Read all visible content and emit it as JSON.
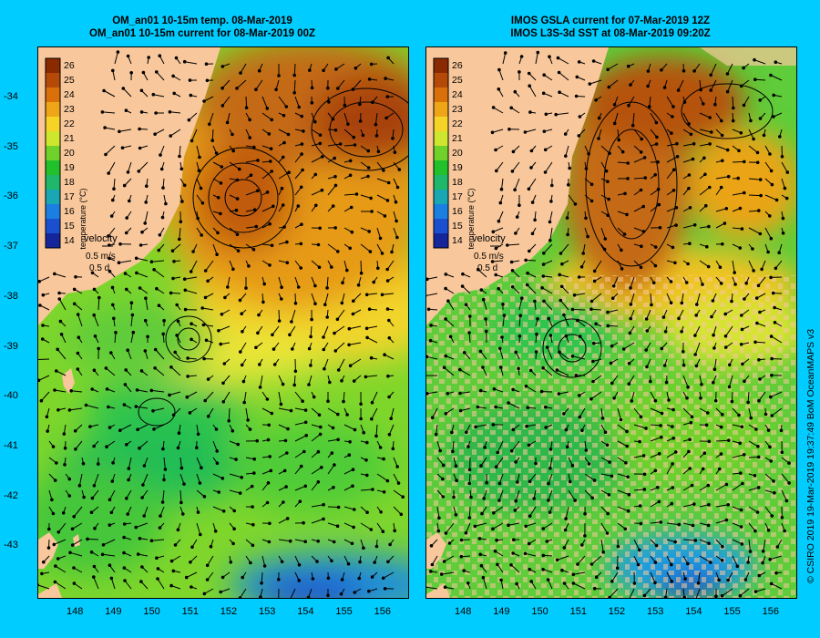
{
  "left_panel": {
    "title_line1": "OM_an01 10-15m temp. 08-Mar-2019",
    "title_line2": "OM_an01 10-15m current for 08-Mar-2019 00Z"
  },
  "right_panel": {
    "title_line1": "IMOS GSLA current for 07-Mar-2019 12Z",
    "title_line2": "IMOS L3S-3d SST at 08-Mar-2019 09:20Z"
  },
  "colorbar": {
    "label": "temperature (°C)",
    "ticks": [
      "26",
      "25",
      "24",
      "23",
      "22",
      "21",
      "20",
      "19",
      "18",
      "17",
      "16",
      "15",
      "14"
    ],
    "colors": [
      "#8a2a00",
      "#b54a08",
      "#d9700a",
      "#eea517",
      "#f6d327",
      "#cfe62f",
      "#6fd12a",
      "#22c02a",
      "#1fb86a",
      "#1aa7b4",
      "#1a7fe0",
      "#1a4fd0",
      "#15259a"
    ]
  },
  "velocity_legend": {
    "title": "velocity",
    "speed": "0.5 m/s",
    "duration": "0.5 d"
  },
  "axes": {
    "lon_ticks": [
      "148",
      "149",
      "150",
      "151",
      "152",
      "153",
      "154",
      "155",
      "156"
    ],
    "lat_ticks": [
      "-34",
      "-35",
      "-36",
      "-37",
      "-38",
      "-39",
      "-40",
      "-41",
      "-42",
      "-43"
    ]
  },
  "credit": "© CSIRO 2019  19-Mar-2019 19:37:49 BoM OceanMAPS v3",
  "colors": {
    "land": "#f8c79b",
    "background": "#00ccff"
  }
}
